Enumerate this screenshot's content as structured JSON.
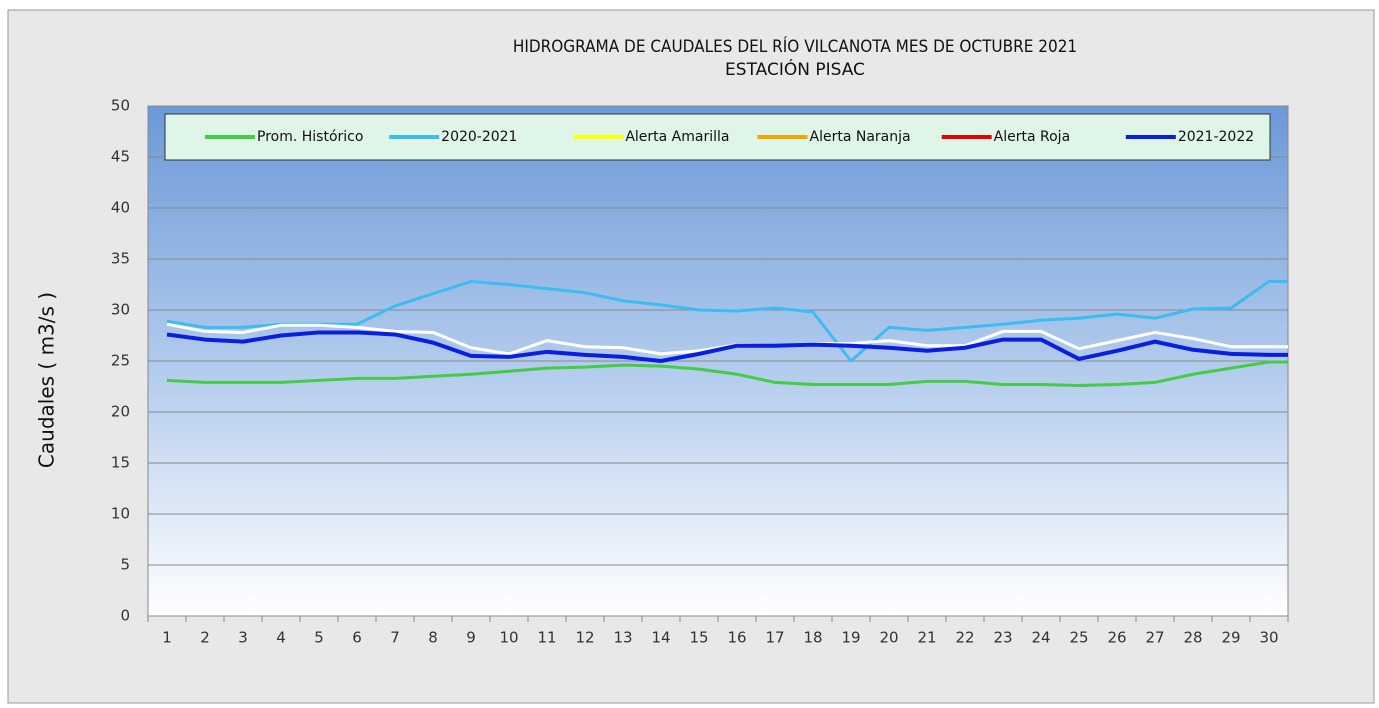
{
  "chart_data": {
    "type": "line",
    "title": "HIDROGRAMA DE CAUDALES DEL RÍO VILCANOTA MES DE OCTUBRE 2021",
    "subtitle": "ESTACIÓN PISAC",
    "y_label": "Caudales ( m3/s )",
    "categories": [
      "1",
      "2",
      "3",
      "4",
      "5",
      "6",
      "7",
      "8",
      "9",
      "10",
      "11",
      "12",
      "13",
      "14",
      "15",
      "16",
      "17",
      "18",
      "19",
      "20",
      "21",
      "22",
      "23",
      "24",
      "25",
      "26",
      "27",
      "28",
      "29",
      "30"
    ],
    "ylim": [
      0,
      50
    ],
    "yticks": [
      0,
      5,
      10,
      15,
      20,
      25,
      30,
      35,
      40,
      45,
      50
    ],
    "grid": true,
    "series": [
      {
        "name": "Prom. Histórico",
        "color": "#44cc44",
        "values": [
          23.1,
          22.9,
          22.9,
          22.9,
          23.1,
          23.3,
          23.3,
          23.5,
          23.7,
          24.0,
          24.3,
          24.4,
          24.6,
          24.5,
          24.2,
          23.7,
          22.9,
          22.7,
          22.7,
          22.7,
          23.0,
          23.0,
          22.7,
          22.7,
          22.6,
          22.7,
          22.9,
          23.7,
          24.3,
          24.9
        ]
      },
      {
        "name": "2020-2021",
        "color": "#3cbcf0",
        "values": [
          28.9,
          28.3,
          28.3,
          28.6,
          28.6,
          28.6,
          30.4,
          31.6,
          32.8,
          32.5,
          32.1,
          31.7,
          30.9,
          30.5,
          30.0,
          29.9,
          30.2,
          29.8,
          25.0,
          28.3,
          28.0,
          28.3,
          28.6,
          29.0,
          29.2,
          29.6,
          29.2,
          30.1,
          30.2,
          32.8
        ]
      },
      {
        "name": "Alerta Amarilla",
        "color": "#ffff00",
        "values": [
          null,
          null,
          null,
          null,
          null,
          null,
          null,
          null,
          null,
          null,
          null,
          null,
          null,
          null,
          null,
          null,
          null,
          null,
          null,
          null,
          null,
          null,
          null,
          null,
          null,
          null,
          null,
          null,
          null,
          null
        ]
      },
      {
        "name": "Alerta Naranja",
        "color": "#f0a800",
        "values": [
          null,
          null,
          null,
          null,
          null,
          null,
          null,
          null,
          null,
          null,
          null,
          null,
          null,
          null,
          null,
          null,
          null,
          null,
          null,
          null,
          null,
          null,
          null,
          null,
          null,
          null,
          null,
          null,
          null,
          null
        ]
      },
      {
        "name": "Alerta Roja",
        "color": "#ee0000",
        "values": [
          null,
          null,
          null,
          null,
          null,
          null,
          null,
          null,
          null,
          null,
          null,
          null,
          null,
          null,
          null,
          null,
          null,
          null,
          null,
          null,
          null,
          null,
          null,
          null,
          null,
          null,
          null,
          null,
          null,
          null
        ]
      },
      {
        "color": "#ffffff",
        "values": [
          28.6,
          27.9,
          27.8,
          28.5,
          28.5,
          28.3,
          27.9,
          27.8,
          26.3,
          25.7,
          27.0,
          26.4,
          26.3,
          25.7,
          26.0,
          26.6,
          26.5,
          26.7,
          26.7,
          27.0,
          26.5,
          26.5,
          27.9,
          27.9,
          26.2,
          27.0,
          27.8,
          27.2,
          26.4,
          26.4
        ]
      },
      {
        "name": "2021-2022",
        "color": "#0a1ee0",
        "values": [
          27.6,
          27.1,
          26.9,
          27.5,
          27.8,
          27.8,
          27.6,
          26.8,
          25.5,
          25.4,
          25.9,
          25.6,
          25.4,
          25.0,
          25.7,
          26.5,
          26.5,
          26.6,
          26.5,
          26.3,
          26.0,
          26.3,
          27.1,
          27.1,
          25.2,
          26.0,
          26.9,
          26.1,
          25.7,
          25.6
        ]
      }
    ]
  }
}
